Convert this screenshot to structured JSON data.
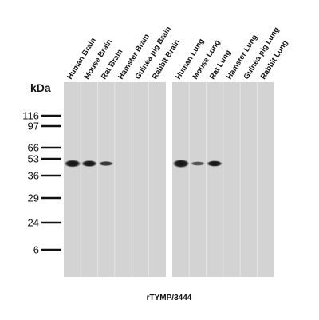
{
  "kda_label": "kDa",
  "markers": [
    "116",
    "97",
    "66",
    "53",
    "36",
    "29",
    "24",
    "6"
  ],
  "lanes": [
    "Human Brain",
    "Mouse Brain",
    "Rat Brain",
    "Hamster Brain",
    "Guinea pig Brain",
    "Rabbit Brain",
    "Human Lung",
    "Mouse Lung",
    "Rat Lung",
    "Hamster Lung",
    "Guinea pig Lung",
    "Rabbit Lung"
  ],
  "caption": "rTYMP/3444"
}
